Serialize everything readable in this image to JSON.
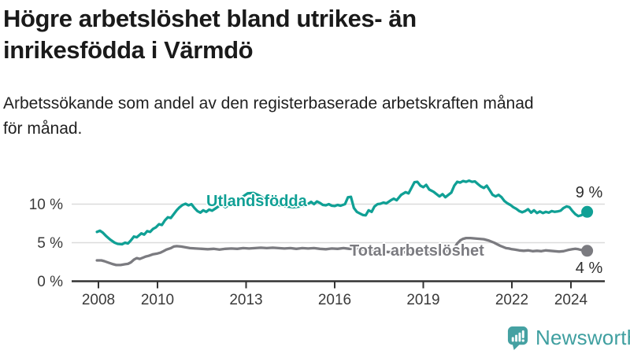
{
  "header": {
    "title_line1": "Högre arbetslöshet bland utrikes- än",
    "title_line2": "inrikesfödda i Värmdö",
    "subtitle_line1": "Arbetssökande som andel av den registerbaserade arbetskraften månad",
    "subtitle_line2": "för månad."
  },
  "colors": {
    "teal": "#10a095",
    "gray": "#7b7b80",
    "grid": "#dcdcdc",
    "axis": "#333333",
    "brand": "#3f9fa0"
  },
  "footer": {
    "brand_name": "Newsworthy",
    "brand_icon": "bar-chart-speech-bubble-icon"
  },
  "chart_data": {
    "type": "line",
    "title": "Högre arbetslöshet bland utrikes- än inrikesfödda i Värmdö",
    "subtitle": "Arbetssökande som andel av den registerbaserade arbetskraften månad för månad.",
    "xlabel": "",
    "ylabel": "",
    "x_unit": "decimal year",
    "y_unit": "percent",
    "xlim": [
      2007.8,
      2025.2
    ],
    "ylim": [
      0,
      14
    ],
    "grid": "horizontal",
    "legend_position": "inline-labels",
    "yticks": [
      {
        "value": 0,
        "label": "0 %"
      },
      {
        "value": 5,
        "label": "5 %"
      },
      {
        "value": 10,
        "label": "10 %"
      }
    ],
    "xticks": [
      {
        "value": 2008,
        "label": "2008"
      },
      {
        "value": 2010,
        "label": "2010"
      },
      {
        "value": 2013,
        "label": "2013"
      },
      {
        "value": 2016,
        "label": "2016"
      },
      {
        "value": 2019,
        "label": "2019"
      },
      {
        "value": 2022,
        "label": "2022"
      },
      {
        "value": 2024,
        "label": "2024"
      }
    ],
    "series": [
      {
        "name": "Utlandsfödda",
        "color": "#10a095",
        "end_label": "9 %",
        "end_dot": true,
        "points": [
          [
            2007.95,
            6.4
          ],
          [
            2008.05,
            6.55
          ],
          [
            2008.15,
            6.3
          ],
          [
            2008.25,
            5.9
          ],
          [
            2008.4,
            5.4
          ],
          [
            2008.55,
            5.0
          ],
          [
            2008.65,
            4.85
          ],
          [
            2008.8,
            4.8
          ],
          [
            2008.9,
            5.0
          ],
          [
            2009.0,
            4.9
          ],
          [
            2009.1,
            5.3
          ],
          [
            2009.2,
            5.8
          ],
          [
            2009.3,
            5.7
          ],
          [
            2009.45,
            6.2
          ],
          [
            2009.55,
            6.05
          ],
          [
            2009.65,
            6.5
          ],
          [
            2009.75,
            6.4
          ],
          [
            2009.85,
            6.8
          ],
          [
            2009.95,
            7.0
          ],
          [
            2010.05,
            7.4
          ],
          [
            2010.15,
            7.3
          ],
          [
            2010.25,
            7.9
          ],
          [
            2010.35,
            8.3
          ],
          [
            2010.45,
            8.2
          ],
          [
            2010.55,
            8.7
          ],
          [
            2010.65,
            9.2
          ],
          [
            2010.75,
            9.6
          ],
          [
            2010.85,
            9.9
          ],
          [
            2010.95,
            10.05
          ],
          [
            2011.05,
            9.85
          ],
          [
            2011.15,
            10.0
          ],
          [
            2011.25,
            9.5
          ],
          [
            2011.35,
            9.1
          ],
          [
            2011.45,
            8.9
          ],
          [
            2011.55,
            9.2
          ],
          [
            2011.65,
            9.0
          ],
          [
            2011.75,
            9.3
          ],
          [
            2011.85,
            9.15
          ],
          [
            2011.95,
            9.4
          ],
          [
            2012.1,
            9.8
          ],
          [
            2012.2,
            9.9
          ],
          [
            2012.3,
            9.6
          ],
          [
            2012.5,
            10.1
          ],
          [
            2012.7,
            10.5
          ],
          [
            2012.9,
            11.0
          ],
          [
            2013.05,
            11.4
          ],
          [
            2013.25,
            11.45
          ],
          [
            2013.45,
            11.1
          ],
          [
            2013.65,
            10.6
          ],
          [
            2013.85,
            10.2
          ],
          [
            2014.1,
            9.9
          ],
          [
            2014.35,
            9.7
          ],
          [
            2014.6,
            9.6
          ],
          [
            2014.85,
            9.7
          ],
          [
            2015.05,
            9.9
          ],
          [
            2015.2,
            10.3
          ],
          [
            2015.3,
            10.0
          ],
          [
            2015.4,
            10.35
          ],
          [
            2015.5,
            10.15
          ],
          [
            2015.6,
            9.9
          ],
          [
            2015.7,
            9.85
          ],
          [
            2015.8,
            10.0
          ],
          [
            2015.9,
            9.8
          ],
          [
            2016.0,
            9.75
          ],
          [
            2016.1,
            9.9
          ],
          [
            2016.2,
            9.8
          ],
          [
            2016.35,
            10.0
          ],
          [
            2016.45,
            10.9
          ],
          [
            2016.55,
            10.95
          ],
          [
            2016.65,
            9.5
          ],
          [
            2016.75,
            9.0
          ],
          [
            2016.85,
            8.8
          ],
          [
            2016.95,
            8.6
          ],
          [
            2017.05,
            8.55
          ],
          [
            2017.15,
            9.2
          ],
          [
            2017.25,
            9.0
          ],
          [
            2017.35,
            9.7
          ],
          [
            2017.45,
            10.0
          ],
          [
            2017.55,
            10.05
          ],
          [
            2017.65,
            10.2
          ],
          [
            2017.75,
            10.1
          ],
          [
            2017.9,
            10.5
          ],
          [
            2018.0,
            10.7
          ],
          [
            2018.1,
            10.5
          ],
          [
            2018.25,
            11.2
          ],
          [
            2018.4,
            11.55
          ],
          [
            2018.5,
            11.4
          ],
          [
            2018.6,
            12.1
          ],
          [
            2018.7,
            12.85
          ],
          [
            2018.8,
            12.9
          ],
          [
            2018.9,
            12.4
          ],
          [
            2019.0,
            12.2
          ],
          [
            2019.1,
            12.5
          ],
          [
            2019.2,
            11.9
          ],
          [
            2019.35,
            11.6
          ],
          [
            2019.45,
            11.3
          ],
          [
            2019.55,
            11.0
          ],
          [
            2019.65,
            11.3
          ],
          [
            2019.75,
            10.9
          ],
          [
            2019.85,
            11.2
          ],
          [
            2019.95,
            11.5
          ],
          [
            2020.05,
            12.4
          ],
          [
            2020.15,
            12.9
          ],
          [
            2020.25,
            12.8
          ],
          [
            2020.35,
            13.0
          ],
          [
            2020.45,
            12.9
          ],
          [
            2020.55,
            13.05
          ],
          [
            2020.65,
            12.9
          ],
          [
            2020.75,
            12.95
          ],
          [
            2020.85,
            12.6
          ],
          [
            2020.95,
            12.3
          ],
          [
            2021.05,
            12.1
          ],
          [
            2021.15,
            12.4
          ],
          [
            2021.25,
            11.8
          ],
          [
            2021.35,
            11.2
          ],
          [
            2021.45,
            11.0
          ],
          [
            2021.55,
            11.2
          ],
          [
            2021.65,
            10.9
          ],
          [
            2021.75,
            10.4
          ],
          [
            2021.85,
            10.1
          ],
          [
            2021.95,
            9.9
          ],
          [
            2022.05,
            9.6
          ],
          [
            2022.15,
            9.4
          ],
          [
            2022.25,
            9.1
          ],
          [
            2022.35,
            8.95
          ],
          [
            2022.45,
            9.1
          ],
          [
            2022.55,
            9.35
          ],
          [
            2022.65,
            8.9
          ],
          [
            2022.75,
            9.2
          ],
          [
            2022.85,
            8.85
          ],
          [
            2022.95,
            9.05
          ],
          [
            2023.05,
            8.85
          ],
          [
            2023.15,
            9.0
          ],
          [
            2023.25,
            8.9
          ],
          [
            2023.35,
            9.1
          ],
          [
            2023.45,
            9.0
          ],
          [
            2023.55,
            9.05
          ],
          [
            2023.65,
            9.15
          ],
          [
            2023.75,
            9.5
          ],
          [
            2023.85,
            9.7
          ],
          [
            2023.95,
            9.6
          ],
          [
            2024.05,
            9.1
          ],
          [
            2024.15,
            8.7
          ],
          [
            2024.25,
            8.45
          ],
          [
            2024.35,
            8.55
          ],
          [
            2024.45,
            8.85
          ],
          [
            2024.55,
            9.0
          ]
        ]
      },
      {
        "name": "Total arbetslöshet",
        "color": "#7b7b80",
        "end_label": "4 %",
        "end_dot": true,
        "points": [
          [
            2007.95,
            2.7
          ],
          [
            2008.1,
            2.7
          ],
          [
            2008.2,
            2.6
          ],
          [
            2008.35,
            2.4
          ],
          [
            2008.5,
            2.2
          ],
          [
            2008.6,
            2.1
          ],
          [
            2008.75,
            2.1
          ],
          [
            2008.9,
            2.2
          ],
          [
            2009.0,
            2.25
          ],
          [
            2009.1,
            2.45
          ],
          [
            2009.2,
            2.8
          ],
          [
            2009.3,
            3.0
          ],
          [
            2009.4,
            2.9
          ],
          [
            2009.5,
            3.05
          ],
          [
            2009.6,
            3.2
          ],
          [
            2009.7,
            3.3
          ],
          [
            2009.85,
            3.5
          ],
          [
            2010.0,
            3.6
          ],
          [
            2010.1,
            3.7
          ],
          [
            2010.2,
            3.9
          ],
          [
            2010.3,
            4.1
          ],
          [
            2010.45,
            4.3
          ],
          [
            2010.55,
            4.5
          ],
          [
            2010.65,
            4.55
          ],
          [
            2010.8,
            4.5
          ],
          [
            2010.95,
            4.4
          ],
          [
            2011.1,
            4.3
          ],
          [
            2011.3,
            4.25
          ],
          [
            2011.5,
            4.2
          ],
          [
            2011.7,
            4.15
          ],
          [
            2011.9,
            4.2
          ],
          [
            2012.1,
            4.1
          ],
          [
            2012.3,
            4.2
          ],
          [
            2012.5,
            4.25
          ],
          [
            2012.7,
            4.2
          ],
          [
            2012.9,
            4.3
          ],
          [
            2013.1,
            4.25
          ],
          [
            2013.3,
            4.3
          ],
          [
            2013.5,
            4.35
          ],
          [
            2013.7,
            4.3
          ],
          [
            2013.9,
            4.35
          ],
          [
            2014.1,
            4.3
          ],
          [
            2014.3,
            4.25
          ],
          [
            2014.5,
            4.3
          ],
          [
            2014.7,
            4.2
          ],
          [
            2014.9,
            4.3
          ],
          [
            2015.1,
            4.25
          ],
          [
            2015.3,
            4.3
          ],
          [
            2015.5,
            4.2
          ],
          [
            2015.7,
            4.15
          ],
          [
            2015.9,
            4.25
          ],
          [
            2016.1,
            4.2
          ],
          [
            2016.3,
            4.3
          ],
          [
            2016.5,
            4.2
          ],
          [
            2016.7,
            4.25
          ],
          [
            2016.9,
            4.1
          ],
          [
            2017.05,
            4.0
          ],
          [
            2017.2,
            4.1
          ],
          [
            2017.4,
            3.95
          ],
          [
            2017.6,
            3.85
          ],
          [
            2017.8,
            3.8
          ],
          [
            2018.0,
            3.75
          ],
          [
            2018.2,
            3.8
          ],
          [
            2018.4,
            3.75
          ],
          [
            2018.6,
            3.8
          ],
          [
            2018.8,
            3.85
          ],
          [
            2019.0,
            3.8
          ],
          [
            2019.2,
            3.85
          ],
          [
            2019.4,
            3.9
          ],
          [
            2019.6,
            3.85
          ],
          [
            2019.8,
            3.9
          ],
          [
            2019.95,
            4.0
          ],
          [
            2020.05,
            4.3
          ],
          [
            2020.15,
            4.9
          ],
          [
            2020.25,
            5.3
          ],
          [
            2020.35,
            5.5
          ],
          [
            2020.45,
            5.6
          ],
          [
            2020.6,
            5.6
          ],
          [
            2020.75,
            5.55
          ],
          [
            2020.9,
            5.5
          ],
          [
            2021.05,
            5.45
          ],
          [
            2021.2,
            5.3
          ],
          [
            2021.3,
            5.15
          ],
          [
            2021.4,
            5.0
          ],
          [
            2021.5,
            4.8
          ],
          [
            2021.6,
            4.6
          ],
          [
            2021.7,
            4.45
          ],
          [
            2021.8,
            4.3
          ],
          [
            2021.9,
            4.25
          ],
          [
            2022.0,
            4.15
          ],
          [
            2022.1,
            4.1
          ],
          [
            2022.25,
            4.0
          ],
          [
            2022.4,
            3.95
          ],
          [
            2022.55,
            4.0
          ],
          [
            2022.7,
            3.9
          ],
          [
            2022.85,
            3.95
          ],
          [
            2023.0,
            3.9
          ],
          [
            2023.15,
            4.0
          ],
          [
            2023.3,
            3.95
          ],
          [
            2023.45,
            3.9
          ],
          [
            2023.6,
            3.85
          ],
          [
            2023.75,
            3.9
          ],
          [
            2023.9,
            4.05
          ],
          [
            2024.05,
            4.15
          ],
          [
            2024.15,
            4.2
          ],
          [
            2024.25,
            4.15
          ],
          [
            2024.35,
            4.05
          ],
          [
            2024.45,
            4.0
          ],
          [
            2024.55,
            3.95
          ]
        ]
      }
    ]
  }
}
